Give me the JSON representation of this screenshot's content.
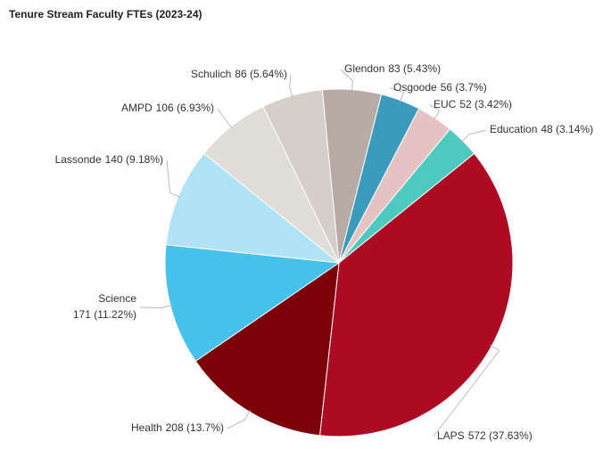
{
  "chart_data": {
    "type": "pie",
    "title": "Tenure Stream Faculty FTEs (2023-24)",
    "categories": [
      "Glendon",
      "Osgoode",
      "EUC",
      "Education",
      "LAPS",
      "Health",
      "Science",
      "Lassonde",
      "AMPD",
      "Schulich"
    ],
    "values": [
      83,
      56,
      52,
      48,
      572,
      208,
      171,
      140,
      106,
      86
    ],
    "value_labels": [
      "83 (5.43%)",
      "56 (3.7%)",
      "52 (3.42%)",
      "48 (3.14%)",
      "572 (37.63%)",
      "208 (13.7%)",
      "171 (11.22%)",
      "140 (9.18%)",
      "106 (6.93%)",
      "86 (5.64%)"
    ],
    "colors": [
      "#b8aba5",
      "#3a9bbd",
      "#e5c3c3",
      "#4ec9bf",
      "#ad0a24",
      "#7d0009",
      "#45c1ec",
      "#b0e3f5",
      "#e0ddd9",
      "#d6cec9"
    ]
  }
}
